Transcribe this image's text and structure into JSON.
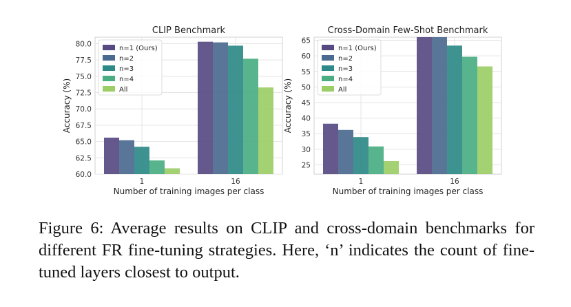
{
  "chart_data": [
    {
      "type": "bar",
      "title": "CLIP Benchmark",
      "xlabel": "Number of training images per class",
      "ylabel": "Accuracy (%)",
      "categories": [
        "1",
        "16"
      ],
      "ylim": [
        60.0,
        81.0
      ],
      "yticks": [
        "60.0",
        "62.5",
        "65.0",
        "67.5",
        "70.0",
        "72.5",
        "75.0",
        "77.5",
        "80.0"
      ],
      "grid": true,
      "legend_position": "top-left",
      "series": [
        {
          "name": "n=1 (Ours)",
          "values": [
            65.6,
            80.3
          ]
        },
        {
          "name": "n=2",
          "values": [
            65.2,
            80.2
          ]
        },
        {
          "name": "n=3",
          "values": [
            64.2,
            79.7
          ]
        },
        {
          "name": "n=4",
          "values": [
            62.1,
            77.7
          ]
        },
        {
          "name": "All",
          "values": [
            60.9,
            73.3
          ]
        }
      ]
    },
    {
      "type": "bar",
      "title": "Cross-Domain Few-Shot Benchmark",
      "xlabel": "Number of training images per class",
      "ylabel": "Accuracy (%)",
      "categories": [
        "1",
        "16"
      ],
      "ylim": [
        22.0,
        66.0
      ],
      "yticks": [
        "25",
        "30",
        "35",
        "40",
        "45",
        "50",
        "55",
        "60",
        "65"
      ],
      "grid": true,
      "legend_position": "top-left",
      "series": [
        {
          "name": "n=1 (Ours)",
          "values": [
            38.2,
            66.0
          ]
        },
        {
          "name": "n=2",
          "values": [
            36.2,
            66.0
          ]
        },
        {
          "name": "n=3",
          "values": [
            33.9,
            63.3
          ]
        },
        {
          "name": "n=4",
          "values": [
            30.9,
            59.7
          ]
        },
        {
          "name": "All",
          "values": [
            26.2,
            56.6
          ]
        }
      ]
    }
  ],
  "colors": [
    "#574a82",
    "#4b6a8f",
    "#2e8a88",
    "#4aae82",
    "#9ccd66"
  ],
  "caption": "Figure 6: Average results on CLIP and cross-domain benchmarks for different FR fine-tuning strategies. Here, ‘n’ indicates the count of fine-tuned layers closest to output."
}
